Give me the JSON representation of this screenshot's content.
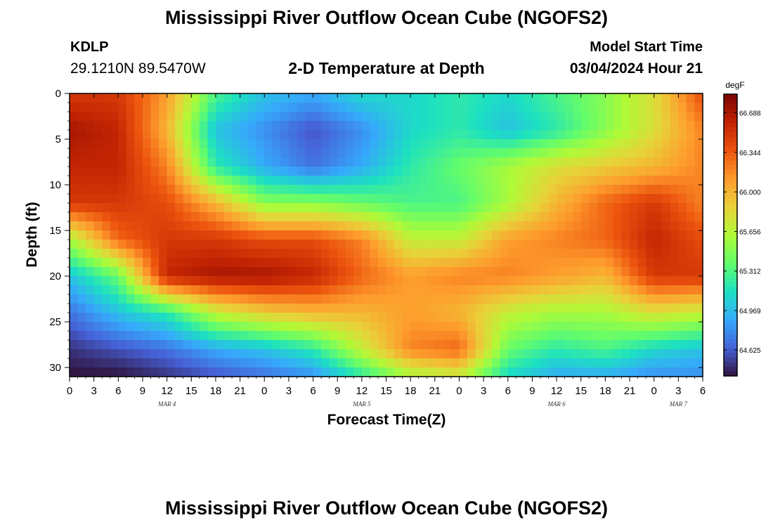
{
  "header": {
    "title": "Mississippi River Outflow Ocean Cube (NGOFS2)",
    "station_id": "KDLP",
    "station_coords": "29.1210N  89.5470W",
    "plot_title": "2-D Temperature at Depth",
    "model_start_label": "Model Start Time",
    "model_start_value": "03/04/2024 Hour 21"
  },
  "footer": {
    "title": "Mississippi River Outflow Ocean Cube (NGOFS2)"
  },
  "chart_data": {
    "type": "heatmap",
    "xlabel": "Forecast Time(Z)",
    "ylabel": "Depth (ft)",
    "x_range_hours_from_mar4_00z": [
      0,
      78
    ],
    "y_range": [
      0,
      31
    ],
    "y_inverted": true,
    "x_tick_labels": [
      "0",
      "3",
      "6",
      "9",
      "12",
      "15",
      "18",
      "21",
      "0",
      "3",
      "6",
      "9",
      "12",
      "15",
      "18",
      "21",
      "0",
      "3",
      "6",
      "9",
      "12",
      "15",
      "18",
      "21",
      "0",
      "3",
      "6"
    ],
    "y_tick_labels": [
      "0",
      "5",
      "10",
      "15",
      "20",
      "25",
      "30"
    ],
    "y_ticks": [
      0,
      5,
      10,
      15,
      20,
      25,
      30
    ],
    "date_labels": [
      {
        "label": "MAR 4",
        "hour": 12
      },
      {
        "label": "MAR 5",
        "hour": 36
      },
      {
        "label": "MAR 6",
        "hour": 60
      },
      {
        "label": "MAR 7",
        "hour": 75
      }
    ],
    "colorbar": {
      "unit": "degF",
      "min": 64.4,
      "max": 66.85,
      "tick_values": [
        66.688,
        66.344,
        66.0,
        65.656,
        65.312,
        64.969,
        64.625
      ],
      "tick_labels": [
        "66.688",
        "66.344",
        "66.000",
        "65.656",
        "65.312",
        "64.969",
        "64.625"
      ],
      "colormap": "turbo"
    },
    "field_hours": [
      0,
      6,
      12,
      18,
      24,
      30,
      36,
      42,
      48,
      54,
      60,
      66,
      72,
      78
    ],
    "field_depths": [
      0,
      4,
      8,
      12,
      16,
      20,
      24,
      28,
      31
    ],
    "field": [
      [
        66.5,
        66.5,
        66.1,
        65.3,
        65.0,
        64.9,
        65.1,
        65.1,
        65.2,
        65.1,
        65.3,
        65.5,
        65.8,
        66.4
      ],
      [
        66.7,
        66.6,
        66.0,
        65.0,
        64.8,
        64.6,
        64.8,
        65.1,
        65.2,
        65.0,
        65.2,
        65.5,
        65.8,
        66.2
      ],
      [
        66.6,
        66.6,
        66.2,
        65.2,
        64.9,
        64.7,
        64.9,
        65.2,
        65.4,
        65.6,
        65.8,
        65.9,
        66.0,
        66.2
      ],
      [
        66.5,
        66.5,
        66.4,
        66.0,
        65.5,
        65.5,
        65.4,
        65.3,
        65.3,
        65.6,
        66.0,
        66.3,
        66.5,
        66.2
      ],
      [
        65.6,
        66.3,
        66.5,
        66.5,
        66.4,
        66.4,
        66.2,
        65.7,
        65.7,
        66.1,
        66.2,
        66.3,
        66.6,
        66.4
      ],
      [
        65.0,
        65.4,
        66.6,
        66.7,
        66.7,
        66.6,
        66.3,
        66.1,
        66.2,
        66.2,
        66.1,
        66.0,
        66.5,
        66.5
      ],
      [
        64.7,
        65.0,
        65.2,
        65.7,
        65.9,
        66.0,
        66.0,
        66.1,
        66.0,
        65.7,
        65.6,
        65.6,
        65.8,
        65.7
      ],
      [
        64.5,
        64.6,
        64.7,
        64.9,
        65.0,
        65.2,
        65.7,
        66.2,
        66.3,
        65.4,
        65.2,
        65.3,
        65.1,
        65.0
      ],
      [
        64.4,
        64.4,
        64.5,
        64.6,
        64.7,
        64.8,
        65.2,
        65.6,
        65.7,
        65.1,
        64.9,
        64.9,
        64.8,
        64.8
      ]
    ]
  }
}
